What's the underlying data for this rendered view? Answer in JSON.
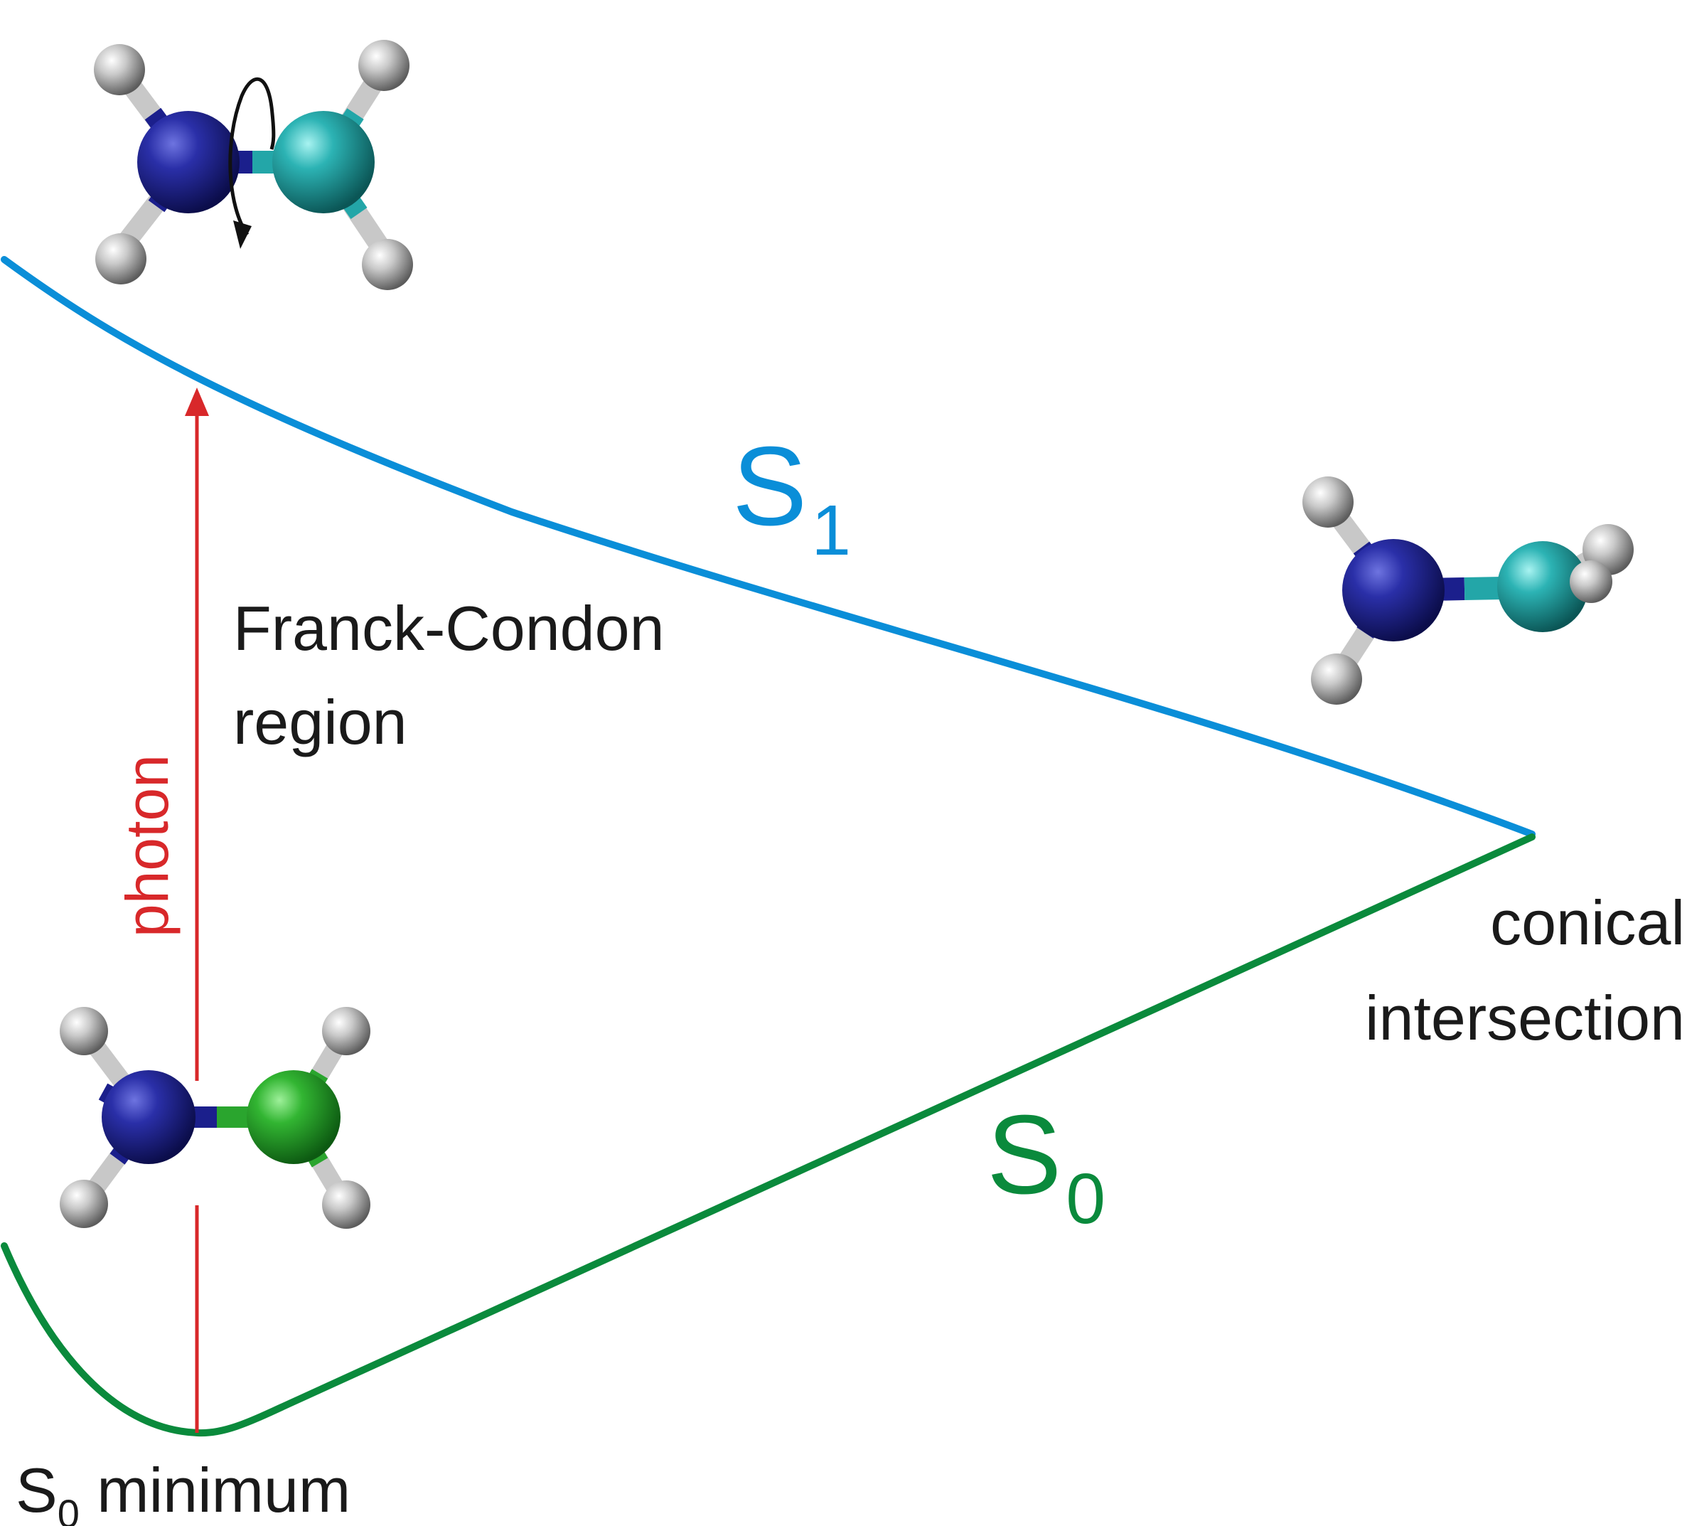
{
  "labels": {
    "s1_letter": "S",
    "s1_sub": "1",
    "s0_letter": "S",
    "s0_sub": "0",
    "franck_line1": "Franck-Condon",
    "franck_line2": "region",
    "photon": "photon",
    "conical_line1": "conical",
    "conical_line2": "intersection",
    "s0min_letter": "S",
    "s0min_sub": "0",
    "s0min_text": " minimum"
  },
  "colors": {
    "s1_curve": "#0a8ed8",
    "s0_curve": "#0a8a3c",
    "photon": "#d8282a",
    "text": "#1a1a1a",
    "nitrogen": "#1b1f8c",
    "carbon_ground": "#2aa52e",
    "carbon_excited": "#23a6a8",
    "hydrogen": "#c8c8c8"
  },
  "molecules": {
    "ground": "planar CH2NH (S0 minimum)",
    "franck_condon": "CH2NH with torsion arrow",
    "conical": "twisted CH2NH"
  }
}
